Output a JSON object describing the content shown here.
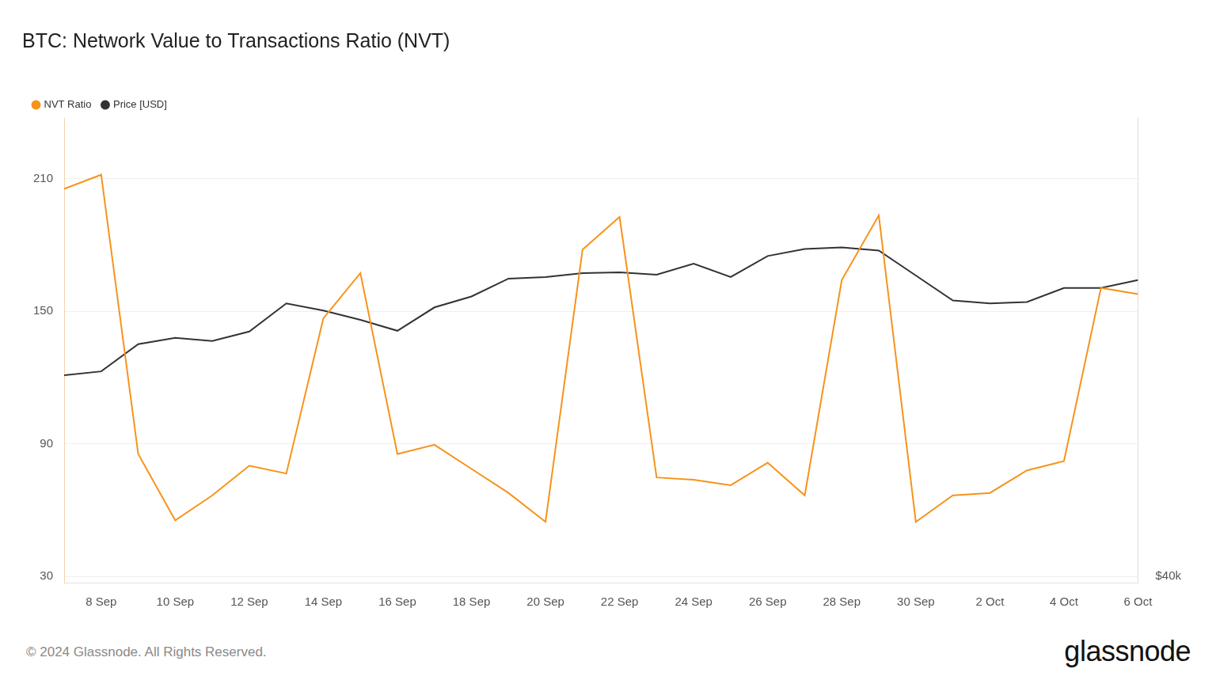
{
  "chart_data": {
    "type": "line",
    "title": "BTC: Network Value to Transactions Ratio (NVT)",
    "categories": [
      null,
      "8 Sep",
      null,
      "10 Sep",
      null,
      "12 Sep",
      null,
      "14 Sep",
      null,
      "16 Sep",
      null,
      "18 Sep",
      null,
      "20 Sep",
      null,
      "22 Sep",
      null,
      "24 Sep",
      null,
      "26 Sep",
      null,
      "28 Sep",
      null,
      "30 Sep",
      null,
      "2 Oct",
      null,
      "4 Oct",
      null,
      "6 Oct"
    ],
    "series": [
      {
        "name": "NVT Ratio",
        "color": "#f7931a",
        "marker": "none",
        "line_style": "solid",
        "values": [
          205.4,
          211.8,
          85.4,
          55.4,
          66.7,
          80.1,
          76.6,
          146.8,
          167.3,
          85.4,
          89.6,
          78.7,
          67.8,
          54.7,
          177.9,
          192.7,
          74.8,
          73.8,
          71.3,
          81.5,
          66.7,
          164.1,
          193.4,
          54.7,
          66.7,
          67.8,
          78.0,
          82.2,
          160.6,
          157.8
        ]
      },
      {
        "name": "Price [USD]",
        "color": "#333333",
        "marker": "none",
        "line_style": "solid",
        "axis": "y2",
        "values": [
          55840,
          56140,
          58290,
          58780,
          58540,
          59280,
          61490,
          60930,
          60200,
          59340,
          61180,
          62040,
          63450,
          63570,
          63880,
          63940,
          63760,
          64620,
          63570,
          65230,
          65780,
          65910,
          65660,
          63690,
          61730,
          61490,
          61610,
          62710,
          62710,
          63330
        ]
      }
    ],
    "ylim": [
      27.2,
      237.5
    ],
    "yticks": [
      30,
      90,
      150,
      210
    ],
    "y2lim": [
      39500,
      76100
    ],
    "y2ticks": [
      {
        "value": 40000,
        "label": "$40k"
      }
    ],
    "grid": "y",
    "legend": "top-left"
  },
  "footer": {
    "copyright": "© 2024 Glassnode. All Rights Reserved.",
    "logo": "glassnode"
  }
}
